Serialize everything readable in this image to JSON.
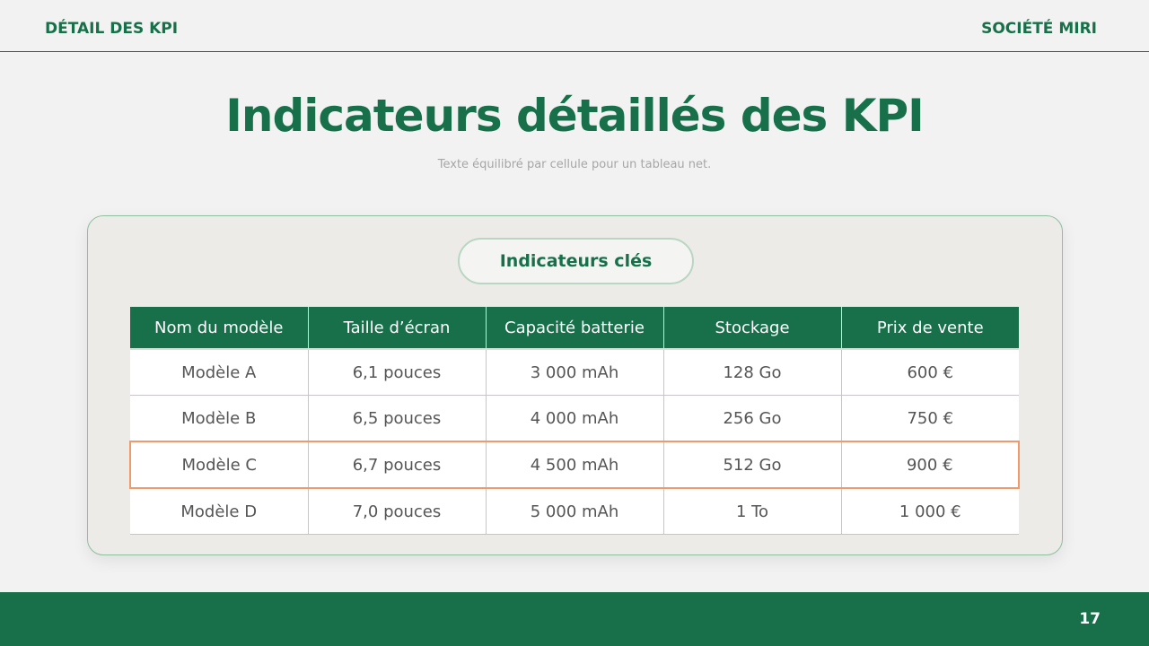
{
  "header": {
    "left": "DÉTAIL DES KPI",
    "right": "SOCIÉTÉ MIRI"
  },
  "title": "Indicateurs détaillés des KPI",
  "subtitle": "Texte équilibré par cellule pour un tableau net.",
  "card": {
    "label": "Indicateurs clés"
  },
  "table": {
    "columns": [
      "Nom du modèle",
      "Taille d’écran",
      "Capacité batterie",
      "Stockage",
      "Prix de vente"
    ],
    "rows": [
      [
        "Modèle A",
        "6,1 pouces",
        "3 000 mAh",
        "128 Go",
        "600 €"
      ],
      [
        "Modèle B",
        "6,5 pouces",
        "4 000 mAh",
        "256 Go",
        "750 €"
      ],
      [
        "Modèle C",
        "6,7 pouces",
        "4 500 mAh",
        "512 Go",
        "900 €"
      ],
      [
        "Modèle D",
        "7,0 pouces",
        "5 000 mAh",
        "1 To",
        "1 000 €"
      ]
    ],
    "highlighted_row": 2
  },
  "footer": {
    "page_number": "17"
  }
}
